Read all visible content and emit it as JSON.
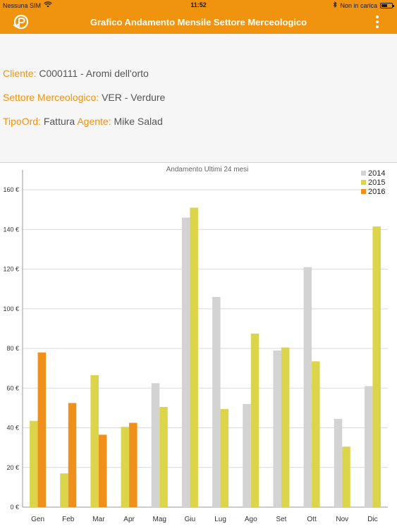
{
  "status_bar": {
    "carrier": "Nessuna SIM",
    "time": "11:52",
    "charging_text": "Non in carica",
    "battery_level": 0.6
  },
  "nav": {
    "title": "Grafico Andamento Mensile Settore Merceologico",
    "logo_icon": "back-logo-icon",
    "menu_icon": "more-vertical-icon"
  },
  "info": {
    "cliente_label": "Cliente:",
    "cliente_value": "C000111 - Aromi dell'orto",
    "settore_label": "Settore Merceologico:",
    "settore_value": "VER - Verdure",
    "tipoord_label": "TipoOrd:",
    "tipoord_value": "Fattura",
    "agente_label": "Agente:",
    "agente_value": "Mike Salad"
  },
  "colors": {
    "accent": "#f0930e",
    "series_2014": "#d3d3d3",
    "series_2015": "#dcd44a",
    "series_2016": "#ef8f1c"
  },
  "chart_data": {
    "type": "bar",
    "title": "Andamento Ultimi 24 mesi",
    "categories": [
      "Gen",
      "Feb",
      "Mar",
      "Apr",
      "Mag",
      "Giu",
      "Lug",
      "Ago",
      "Set",
      "Ott",
      "Nov",
      "Dic"
    ],
    "series": [
      {
        "name": "2014",
        "color": "#d3d3d3",
        "values": [
          null,
          null,
          null,
          null,
          62.5,
          146,
          106,
          52,
          79,
          121,
          44.5,
          61
        ]
      },
      {
        "name": "2015",
        "color": "#dcd44a",
        "values": [
          43.5,
          17,
          66.5,
          40.5,
          50.5,
          151,
          49.5,
          87.5,
          80.5,
          73.5,
          30.5,
          141.5
        ]
      },
      {
        "name": "2016",
        "color": "#ef8f1c",
        "values": [
          78,
          52.5,
          36.5,
          42.5,
          null,
          null,
          null,
          null,
          null,
          null,
          null,
          null
        ]
      }
    ],
    "ylim": [
      0,
      170
    ],
    "yticks": [
      0,
      20,
      40,
      60,
      80,
      100,
      120,
      140,
      160
    ],
    "ytick_labels": [
      "0 €",
      "20 €",
      "40 €",
      "60 €",
      "80 €",
      "100 €",
      "120 €",
      "140 €",
      "160 €"
    ],
    "grid": true,
    "legend_position": "top-right"
  }
}
